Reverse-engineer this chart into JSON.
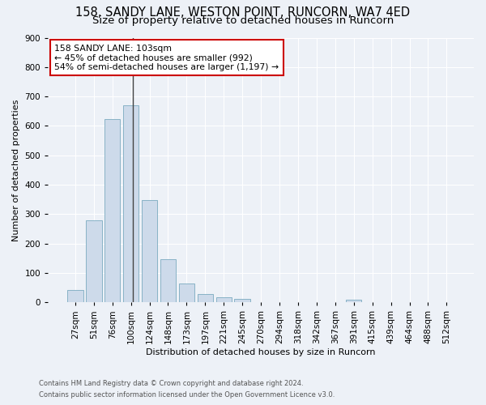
{
  "title1": "158, SANDY LANE, WESTON POINT, RUNCORN, WA7 4ED",
  "title2": "Size of property relative to detached houses in Runcorn",
  "xlabel": "Distribution of detached houses by size in Runcorn",
  "ylabel": "Number of detached properties",
  "footnote1": "Contains HM Land Registry data © Crown copyright and database right 2024.",
  "footnote2": "Contains public sector information licensed under the Open Government Licence v3.0.",
  "categories": [
    "27sqm",
    "51sqm",
    "76sqm",
    "100sqm",
    "124sqm",
    "148sqm",
    "173sqm",
    "197sqm",
    "221sqm",
    "245sqm",
    "270sqm",
    "294sqm",
    "318sqm",
    "342sqm",
    "367sqm",
    "391sqm",
    "415sqm",
    "439sqm",
    "464sqm",
    "488sqm",
    "512sqm"
  ],
  "values": [
    42,
    278,
    622,
    670,
    349,
    147,
    65,
    28,
    17,
    12,
    0,
    0,
    0,
    0,
    0,
    9,
    0,
    0,
    0,
    0,
    0
  ],
  "bar_color": "#cddaea",
  "bar_edge_color": "#7aaabf",
  "annotation_text_line1": "158 SANDY LANE: 103sqm",
  "annotation_text_line2": "← 45% of detached houses are smaller (992)",
  "annotation_text_line3": "54% of semi-detached houses are larger (1,197) →",
  "annotation_box_facecolor": "#ffffff",
  "annotation_box_edgecolor": "#cc0000",
  "vline_color": "#444444",
  "ylim": [
    0,
    900
  ],
  "yticks": [
    0,
    100,
    200,
    300,
    400,
    500,
    600,
    700,
    800,
    900
  ],
  "background_color": "#edf1f7",
  "plot_bg_color": "#edf1f7",
  "grid_color": "#ffffff",
  "title1_fontsize": 10.5,
  "title2_fontsize": 9.5,
  "xlabel_fontsize": 8,
  "ylabel_fontsize": 8,
  "tick_fontsize": 7.5,
  "footnote_fontsize": 6
}
